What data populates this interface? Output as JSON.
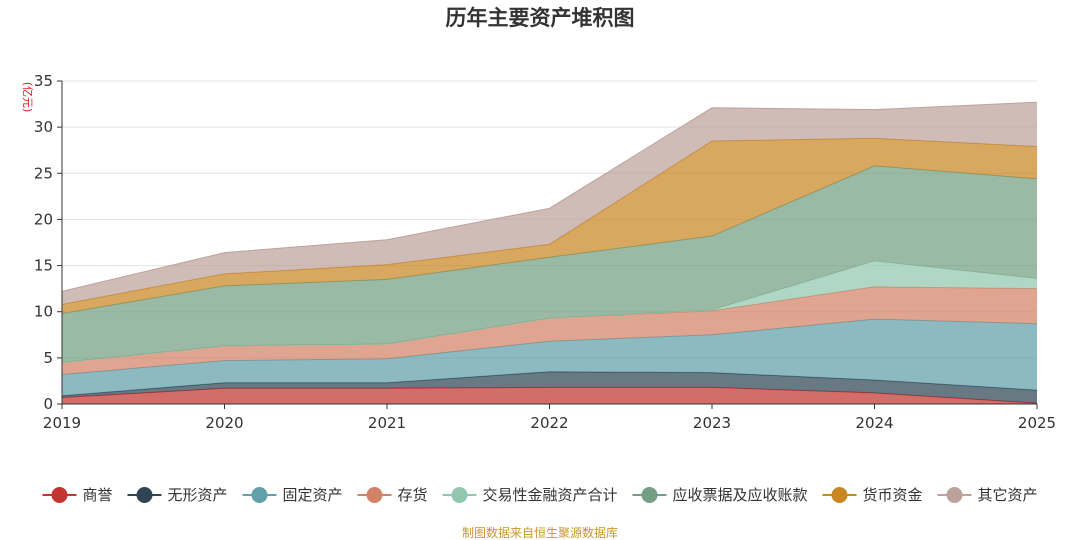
{
  "chart_data": {
    "type": "area",
    "stacked": true,
    "title": "历年主要资产堆积图",
    "unit": "(亿元)",
    "x": [
      "2019",
      "2020",
      "2021",
      "2022",
      "2023",
      "2024",
      "2025"
    ],
    "ylim": [
      0,
      35
    ],
    "yticks": [
      0,
      5,
      10,
      15,
      20,
      25,
      30,
      35
    ],
    "grid": true,
    "legend_position": "bottom",
    "series": [
      {
        "name": "商誉",
        "color": "#c23531",
        "values": [
          0.7,
          1.7,
          1.7,
          1.8,
          1.8,
          1.2,
          0.1
        ]
      },
      {
        "name": "无形资产",
        "color": "#2f4554",
        "values": [
          0.2,
          0.6,
          0.6,
          1.7,
          1.6,
          1.4,
          1.4
        ]
      },
      {
        "name": "固定资产",
        "color": "#61a0a8",
        "values": [
          2.3,
          2.4,
          2.6,
          3.3,
          4.1,
          6.6,
          7.2
        ]
      },
      {
        "name": "存货",
        "color": "#d48265",
        "values": [
          1.3,
          1.6,
          1.6,
          2.5,
          2.6,
          3.5,
          3.8
        ]
      },
      {
        "name": "交易性金融资产合计",
        "color": "#91c7ae",
        "values": [
          0,
          0,
          0,
          0,
          0.1,
          2.8,
          1.1
        ]
      },
      {
        "name": "应收票据及应收账款",
        "color": "#749f83",
        "values": [
          5.3,
          6.5,
          7.0,
          6.6,
          8.0,
          10.3,
          10.8
        ]
      },
      {
        "name": "货币资金",
        "color": "#ca8622",
        "values": [
          1.0,
          1.3,
          1.6,
          1.4,
          10.3,
          3.0,
          3.5
        ]
      },
      {
        "name": "其它资产",
        "color": "#bda29a",
        "values": [
          1.4,
          2.3,
          2.7,
          3.9,
          3.6,
          3.1,
          4.8
        ]
      }
    ]
  },
  "source_note": "制图数据来自恒生聚源数据库"
}
